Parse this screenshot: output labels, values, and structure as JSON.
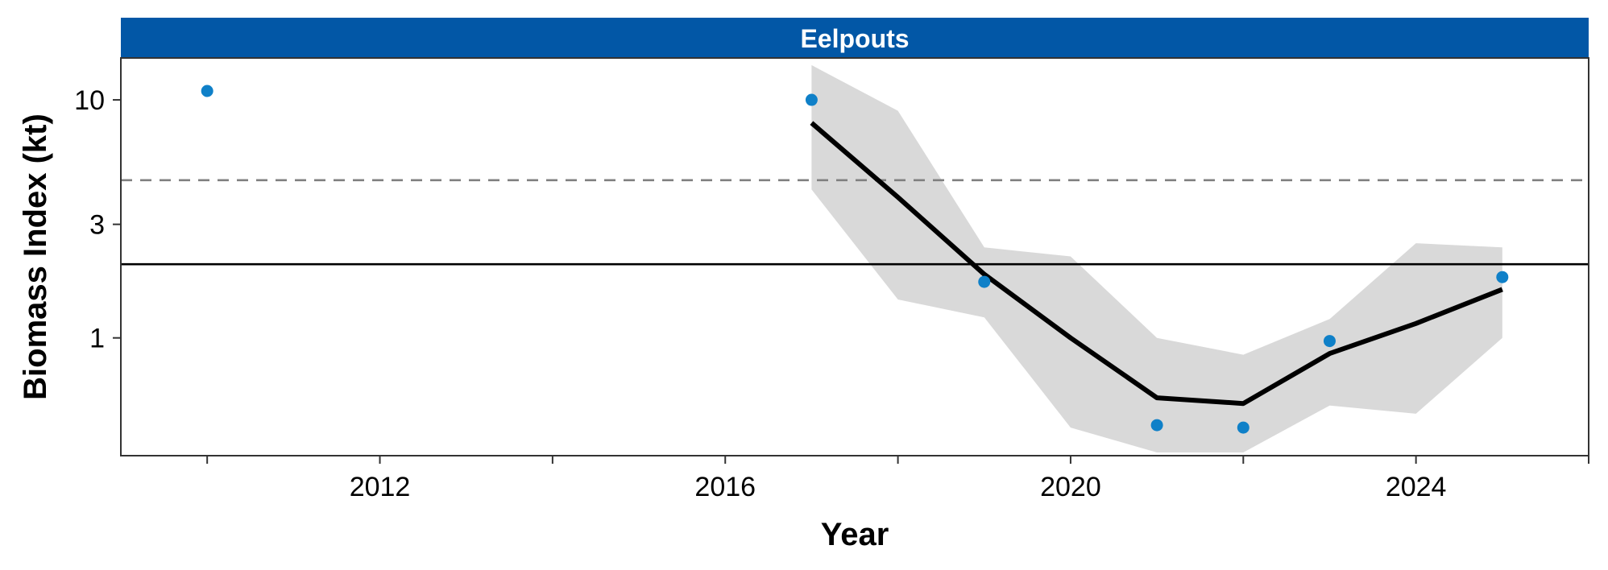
{
  "chart_data": {
    "type": "line",
    "facet_title": "Eelpouts",
    "xlabel": "Year",
    "ylabel": "Biomass Index (kt)",
    "y_scale": "log",
    "xlim": [
      2009,
      2026
    ],
    "ylim": [
      0.32,
      15
    ],
    "x_ticks": [
      2010,
      2012,
      2014,
      2016,
      2018,
      2020,
      2022,
      2024,
      2026
    ],
    "x_tick_labels": [
      {
        "value": 2012,
        "label": "2012"
      },
      {
        "value": 2016,
        "label": "2016"
      },
      {
        "value": 2020,
        "label": "2020"
      },
      {
        "value": 2024,
        "label": "2024"
      }
    ],
    "y_ticks": [
      {
        "value": 1,
        "label": "1"
      },
      {
        "value": 3,
        "label": "3"
      },
      {
        "value": 10,
        "label": "10"
      }
    ],
    "grid": false,
    "observations": {
      "x": [
        2010,
        2017,
        2019,
        2021,
        2022,
        2023,
        2025
      ],
      "y": [
        10.9,
        10.0,
        1.72,
        0.43,
        0.42,
        0.97,
        1.8
      ]
    },
    "fit": {
      "x": [
        2017,
        2018,
        2019,
        2020,
        2021,
        2022,
        2023,
        2024,
        2025
      ],
      "y": [
        8.0,
        3.9,
        1.85,
        1.0,
        0.56,
        0.53,
        0.86,
        1.15,
        1.6
      ]
    },
    "ci_band": {
      "x": [
        2017,
        2018,
        2019,
        2020,
        2021,
        2022,
        2023,
        2024,
        2025
      ],
      "lower": [
        4.2,
        1.45,
        1.22,
        0.42,
        0.33,
        0.33,
        0.52,
        0.48,
        1.0
      ],
      "upper": [
        14.0,
        9.0,
        2.4,
        2.2,
        1.0,
        0.85,
        1.2,
        2.5,
        2.4
      ]
    },
    "reference_lines": [
      {
        "style": "dashed",
        "value": 4.6
      },
      {
        "style": "solid",
        "value": 2.04
      }
    ],
    "colors": {
      "facet_strip": "#0257A6",
      "points": "#0F80C8",
      "fit_line": "#000000",
      "ci_band": "#D9D9D9",
      "dashed_line": "#808080",
      "solid_line": "#000000"
    }
  }
}
